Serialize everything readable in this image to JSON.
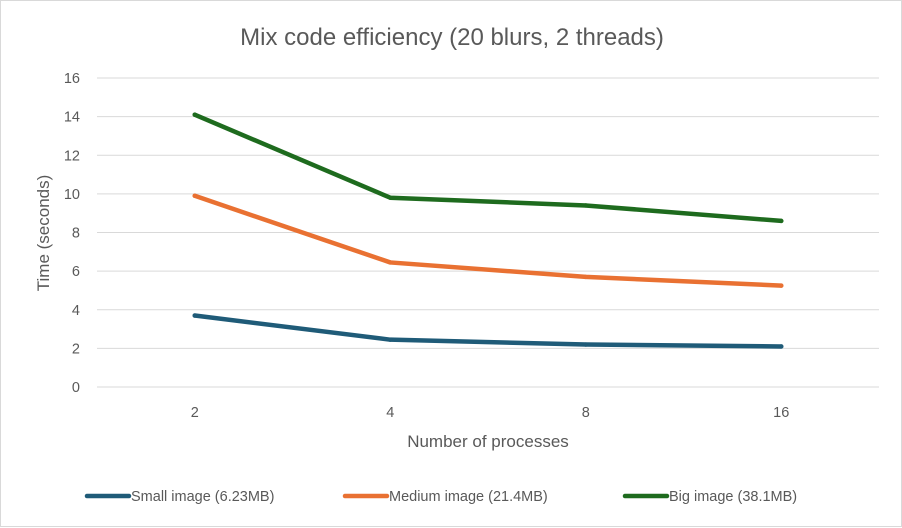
{
  "chart_data": {
    "type": "line",
    "title": "Mix code efficiency (20 blurs, 2 threads)",
    "xlabel": "Number of processes",
    "ylabel": "Time (seconds)",
    "categories": [
      "2",
      "4",
      "8",
      "16"
    ],
    "ylim": [
      0,
      16
    ],
    "yticks": [
      0,
      2,
      4,
      6,
      8,
      10,
      12,
      14,
      16
    ],
    "grid": true,
    "legend_position": "bottom",
    "series": [
      {
        "name": "Small image (6.23MB)",
        "color": "#1f5b78",
        "values": [
          3.7,
          2.45,
          2.2,
          2.1
        ]
      },
      {
        "name": "Medium image (21.4MB)",
        "color": "#e97132",
        "values": [
          9.9,
          6.45,
          5.7,
          5.25
        ]
      },
      {
        "name": "Big image (38.1MB)",
        "color": "#1e6b1e",
        "values": [
          14.1,
          9.8,
          9.4,
          8.6
        ]
      }
    ]
  }
}
